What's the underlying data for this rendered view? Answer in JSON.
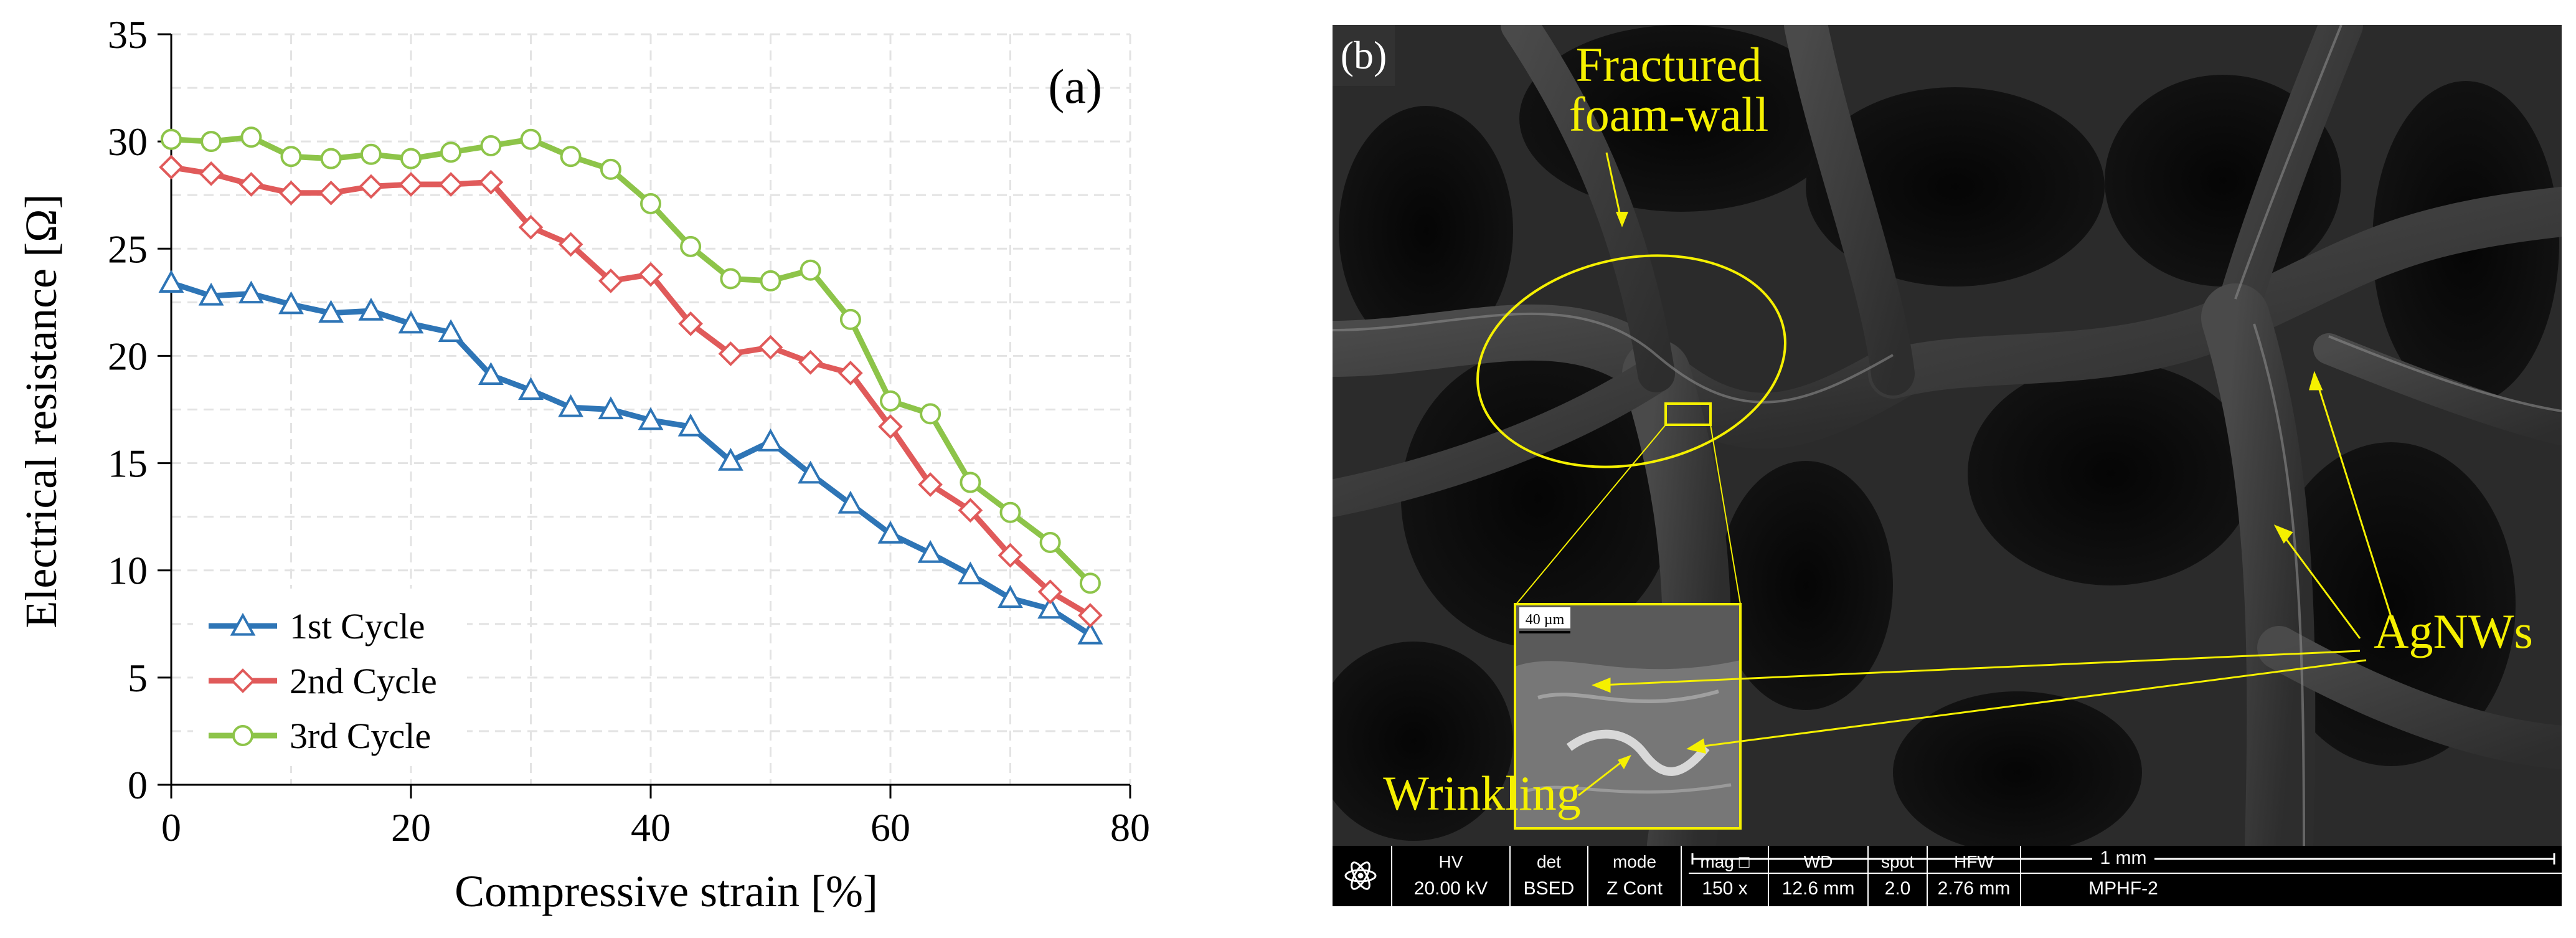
{
  "chart_data": {
    "type": "line",
    "panel_label": "(a)",
    "title": "",
    "xlabel": "Compressive strain [%]",
    "ylabel": "Electrical resistance [Ω]",
    "xlim": [
      0,
      80
    ],
    "ylim": [
      0,
      35
    ],
    "xticks": [
      0,
      20,
      40,
      60,
      80
    ],
    "yticks": [
      0,
      5,
      10,
      15,
      20,
      25,
      30,
      35
    ],
    "grid": true,
    "legend_position": "bottom-left",
    "x": [
      0,
      3.33,
      6.67,
      10,
      13.33,
      16.67,
      20,
      23.33,
      26.67,
      30,
      33.33,
      36.67,
      40,
      43.33,
      46.67,
      50,
      53.33,
      56.67,
      60,
      63.33,
      66.67,
      70,
      73.33,
      76.67
    ],
    "series": [
      {
        "name": "1st Cycle",
        "color": "#2E75B6",
        "marker": "triangle",
        "values": [
          23.4,
          22.8,
          22.9,
          22.4,
          22.0,
          22.1,
          21.5,
          21.1,
          19.1,
          18.4,
          17.6,
          17.5,
          17.0,
          16.7,
          15.1,
          16.0,
          14.5,
          13.1,
          11.7,
          10.8,
          9.8,
          8.7,
          8.2,
          7.0
        ]
      },
      {
        "name": "2nd Cycle",
        "color": "#E05A5A",
        "marker": "diamond",
        "values": [
          28.8,
          28.5,
          28.0,
          27.6,
          27.6,
          27.9,
          28.0,
          28.0,
          28.1,
          26.0,
          25.2,
          23.5,
          23.8,
          21.5,
          20.1,
          20.4,
          19.7,
          19.2,
          16.7,
          14.0,
          12.8,
          10.7,
          9.0,
          7.9
        ]
      },
      {
        "name": "3rd Cycle",
        "color": "#8DC449",
        "marker": "circle",
        "values": [
          30.1,
          30.0,
          30.2,
          29.3,
          29.2,
          29.4,
          29.2,
          29.5,
          29.8,
          30.1,
          29.3,
          28.7,
          27.1,
          25.1,
          23.6,
          23.5,
          24.0,
          21.7,
          17.9,
          17.3,
          14.1,
          12.7,
          11.3,
          9.4
        ]
      }
    ]
  },
  "micrograph": {
    "panel_label": "(b)",
    "annotations": {
      "fractured_line1": "Fractured",
      "fractured_line2": "foam-wall",
      "agnws": "AgNWs",
      "wrinkling": "Wrinkling",
      "inset_scale": "40 µm"
    },
    "colors": {
      "annotation": "#F5F000",
      "background": "#1a1a1a"
    },
    "info_bar": {
      "icon": "sem-atom-icon",
      "fields": [
        {
          "label": "HV",
          "value": "20.00 kV"
        },
        {
          "label": "det",
          "value": "BSED"
        },
        {
          "label": "mode",
          "value": "Z Cont"
        },
        {
          "label": "mag □",
          "value": "150 x"
        },
        {
          "label": "WD",
          "value": "12.6 mm"
        },
        {
          "label": "spot",
          "value": "2.0"
        },
        {
          "label": "HFW",
          "value": "2.76 mm"
        }
      ],
      "scale_label": "1 mm",
      "sample_id": "MPHF-2"
    }
  }
}
